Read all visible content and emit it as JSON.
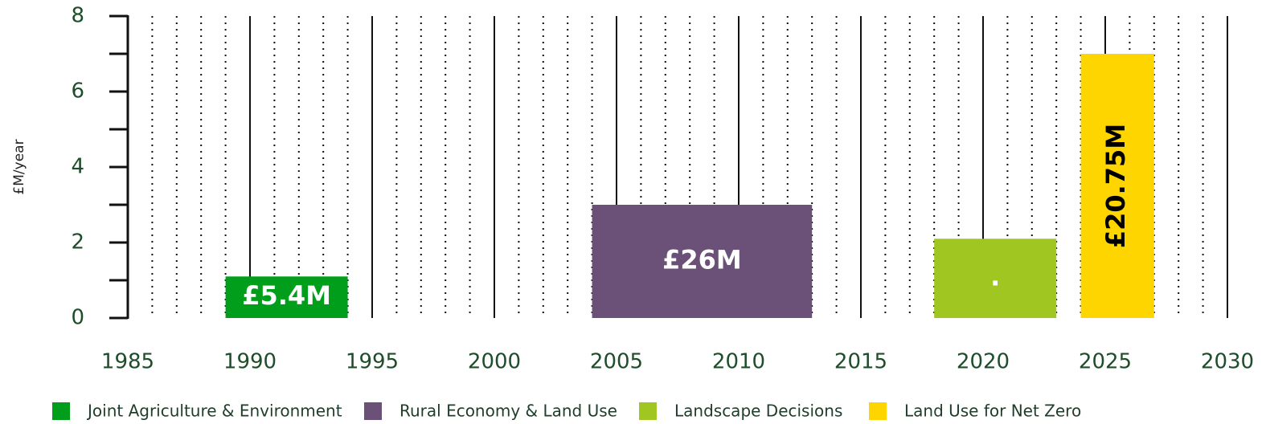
{
  "chart_data": {
    "type": "range_bar",
    "y_label": "£M/year",
    "xlim": [
      1985,
      2030
    ],
    "xticks": [
      1985,
      1990,
      1995,
      2000,
      2005,
      2010,
      2015,
      2020,
      2025,
      2030
    ],
    "xminorticks": [
      1986,
      1987,
      1988,
      1989,
      1991,
      1992,
      1993,
      1994,
      1996,
      1997,
      1998,
      1999,
      2001,
      2002,
      2003,
      2004,
      2006,
      2007,
      2008,
      2009,
      2011,
      2012,
      2013,
      2014,
      2016,
      2017,
      2018,
      2019,
      2021,
      2022,
      2023,
      2024,
      2026,
      2027,
      2028,
      2029
    ],
    "ylim": [
      0,
      8
    ],
    "yticks": [
      0,
      2,
      4,
      6,
      8
    ],
    "yminorticks": [
      1,
      3,
      5,
      7
    ],
    "grid": true,
    "legend": "bottom",
    "series": [
      {
        "name": "Joint Agriculture & Environment",
        "color": "#009e1a",
        "start": 1989,
        "end": 1994,
        "value": 1.1,
        "label": "£5.4M",
        "label_color": "#ffffff",
        "label_rotated": false
      },
      {
        "name": "Rural Economy & Land Use",
        "color": "#6b5077",
        "start": 2004,
        "end": 2013,
        "value": 3,
        "label": "£26M",
        "label_color": "#ffffff",
        "label_rotated": false
      },
      {
        "name": "Landscape Decisions",
        "color": "#a0c621",
        "start": 2018,
        "end": 2023,
        "value": 2.1,
        "label": ".",
        "label_color": "#ffffff",
        "label_rotated": false
      },
      {
        "name": "Land Use for Net Zero",
        "color": "#ffd500",
        "start": 2024,
        "end": 2027,
        "value": 7,
        "label": "£20.75M",
        "label_color": "#000000",
        "label_rotated": true
      }
    ]
  }
}
